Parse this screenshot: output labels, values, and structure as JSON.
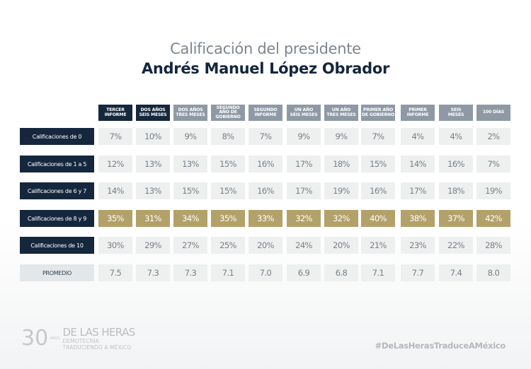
{
  "header": {
    "title_line1": "Calificación del presidente",
    "title_line2": "Andrés Manuel López Obrador"
  },
  "chart_data": {
    "type": "table",
    "title": "Calificación del presidente Andrés Manuel López Obrador",
    "columns": [
      "TERCER\nINFORME",
      "DOS AÑOS\nSEIS MESES",
      "DOS AÑOS\nTRES MESES",
      "SEGUNDO\nAÑO DE\nGOBIERNO",
      "SEGUNDO\nINFORME",
      "UN AÑO\nSEIS MESES",
      "UN AÑO\nTRES MESES",
      "PRIMER AÑO\nDE GOBIERNO",
      "PRIMER\nINFORME",
      "SEIS\nMESES",
      "100 DÍAS"
    ],
    "highlighted_columns": [
      0,
      1
    ],
    "rows": [
      {
        "label": "Calificaciones de 0",
        "values": [
          "7%",
          "10%",
          "9%",
          "8%",
          "7%",
          "9%",
          "9%",
          "7%",
          "4%",
          "4%",
          "2%"
        ],
        "highlight": false
      },
      {
        "label": "Calificaciones de 1 a 5",
        "values": [
          "12%",
          "13%",
          "13%",
          "15%",
          "16%",
          "17%",
          "18%",
          "15%",
          "14%",
          "16%",
          "7%"
        ],
        "highlight": false
      },
      {
        "label": "Calificaciones de 6 y 7",
        "values": [
          "14%",
          "13%",
          "15%",
          "15%",
          "16%",
          "17%",
          "19%",
          "16%",
          "17%",
          "18%",
          "19%"
        ],
        "highlight": false
      },
      {
        "label": "Calificaciones de 8 y 9",
        "values": [
          "35%",
          "31%",
          "34%",
          "35%",
          "33%",
          "32%",
          "32%",
          "40%",
          "38%",
          "37%",
          "42%"
        ],
        "highlight": true
      },
      {
        "label": "Calificaciones de 10",
        "values": [
          "30%",
          "29%",
          "27%",
          "25%",
          "20%",
          "24%",
          "20%",
          "21%",
          "23%",
          "22%",
          "28%"
        ],
        "highlight": false
      }
    ],
    "average_row": {
      "label": "PROMEDIO",
      "values": [
        "7.5",
        "7.3",
        "7.3",
        "7.1",
        "7.0",
        "6.9",
        "6.8",
        "7.1",
        "7.7",
        "7.4",
        "8.0"
      ]
    }
  },
  "colors": {
    "navy": "#15273d",
    "header_gray": "#8e99a5",
    "gold": "#b3a16a",
    "cell_gray": "#eeefef"
  },
  "footer": {
    "logo_number": "30",
    "logo_anos": "AÑOS",
    "logo_name": "DE LAS HERAS",
    "logo_sub1": "DEMOTECNIA",
    "logo_sub2": "TRADUCIENDO A MÉXICO",
    "hashtag": "#DeLasHerasTraduceAMéxico"
  }
}
